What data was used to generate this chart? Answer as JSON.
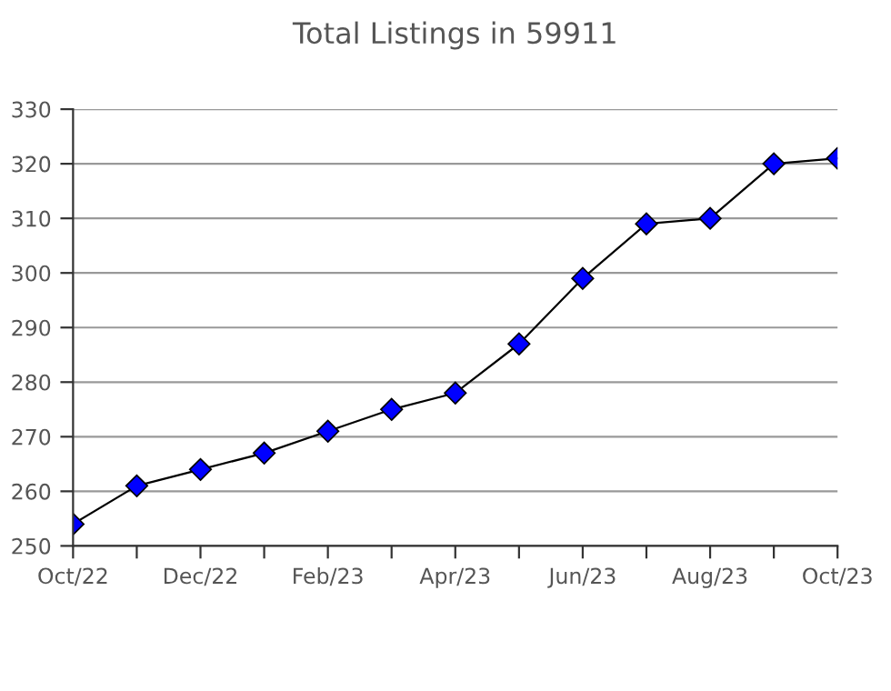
{
  "chart_data": {
    "type": "line",
    "title": "Total Listings in 59911",
    "categories": [
      "Oct/22",
      null,
      "Dec/22",
      null,
      "Feb/23",
      null,
      "Apr/23",
      null,
      "Jun/23",
      null,
      "Aug/23",
      null,
      "Oct/23"
    ],
    "series": [
      {
        "color": "#0000ff",
        "values": [
          254,
          261,
          264,
          267,
          271,
          275,
          278,
          287,
          299,
          309,
          310,
          320,
          321
        ]
      }
    ],
    "ylim": [
      250,
      330
    ],
    "yticks": [
      250,
      260,
      270,
      280,
      290,
      300,
      310,
      320,
      330
    ],
    "grid": "y",
    "marker": "diamond",
    "line_style": "solid"
  }
}
